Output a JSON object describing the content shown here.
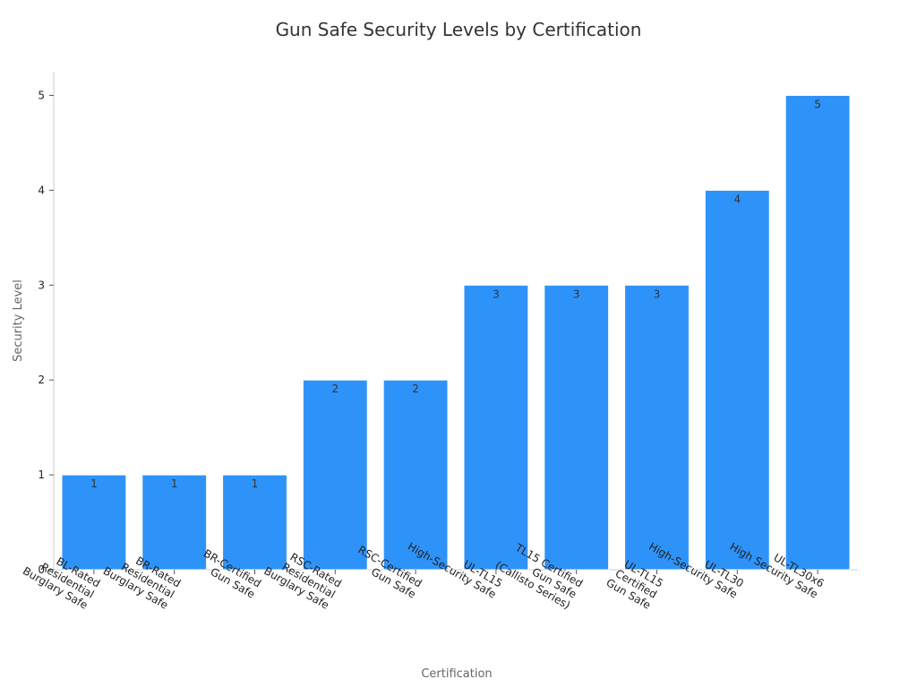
{
  "chart_data": {
    "type": "bar",
    "title": "Gun Safe Security Levels by Certification",
    "xlabel": "Certification",
    "ylabel": "Security Level",
    "categories": [
      [
        "BL-Rated",
        "Residential",
        "Burglary Safe"
      ],
      [
        "BR-Rated",
        "Residential",
        "Burglary Safe"
      ],
      [
        "BR-Certified",
        "Gun Safe"
      ],
      [
        "RSC-Rated",
        "Residential",
        "Burglary Safe"
      ],
      [
        "RSC-Certified",
        "Gun Safe"
      ],
      [
        "UL-TL15",
        "High-Security Safe"
      ],
      [
        "TL15 Certified",
        "Gun Safe",
        "(Callisto Series)"
      ],
      [
        "UL-TL15",
        "Certified",
        "Gun Safe"
      ],
      [
        "UL-TL30",
        "High-Security Safe"
      ],
      [
        "UL-TL30x6",
        "High Security Safe"
      ]
    ],
    "values": [
      1,
      1,
      1,
      2,
      2,
      3,
      3,
      3,
      4,
      5
    ],
    "ylim": [
      0,
      5.25
    ],
    "yticks": [
      0,
      1,
      2,
      3,
      4,
      5
    ],
    "bar_color": "#2e93f8",
    "data_labels": true,
    "grid": false
  }
}
